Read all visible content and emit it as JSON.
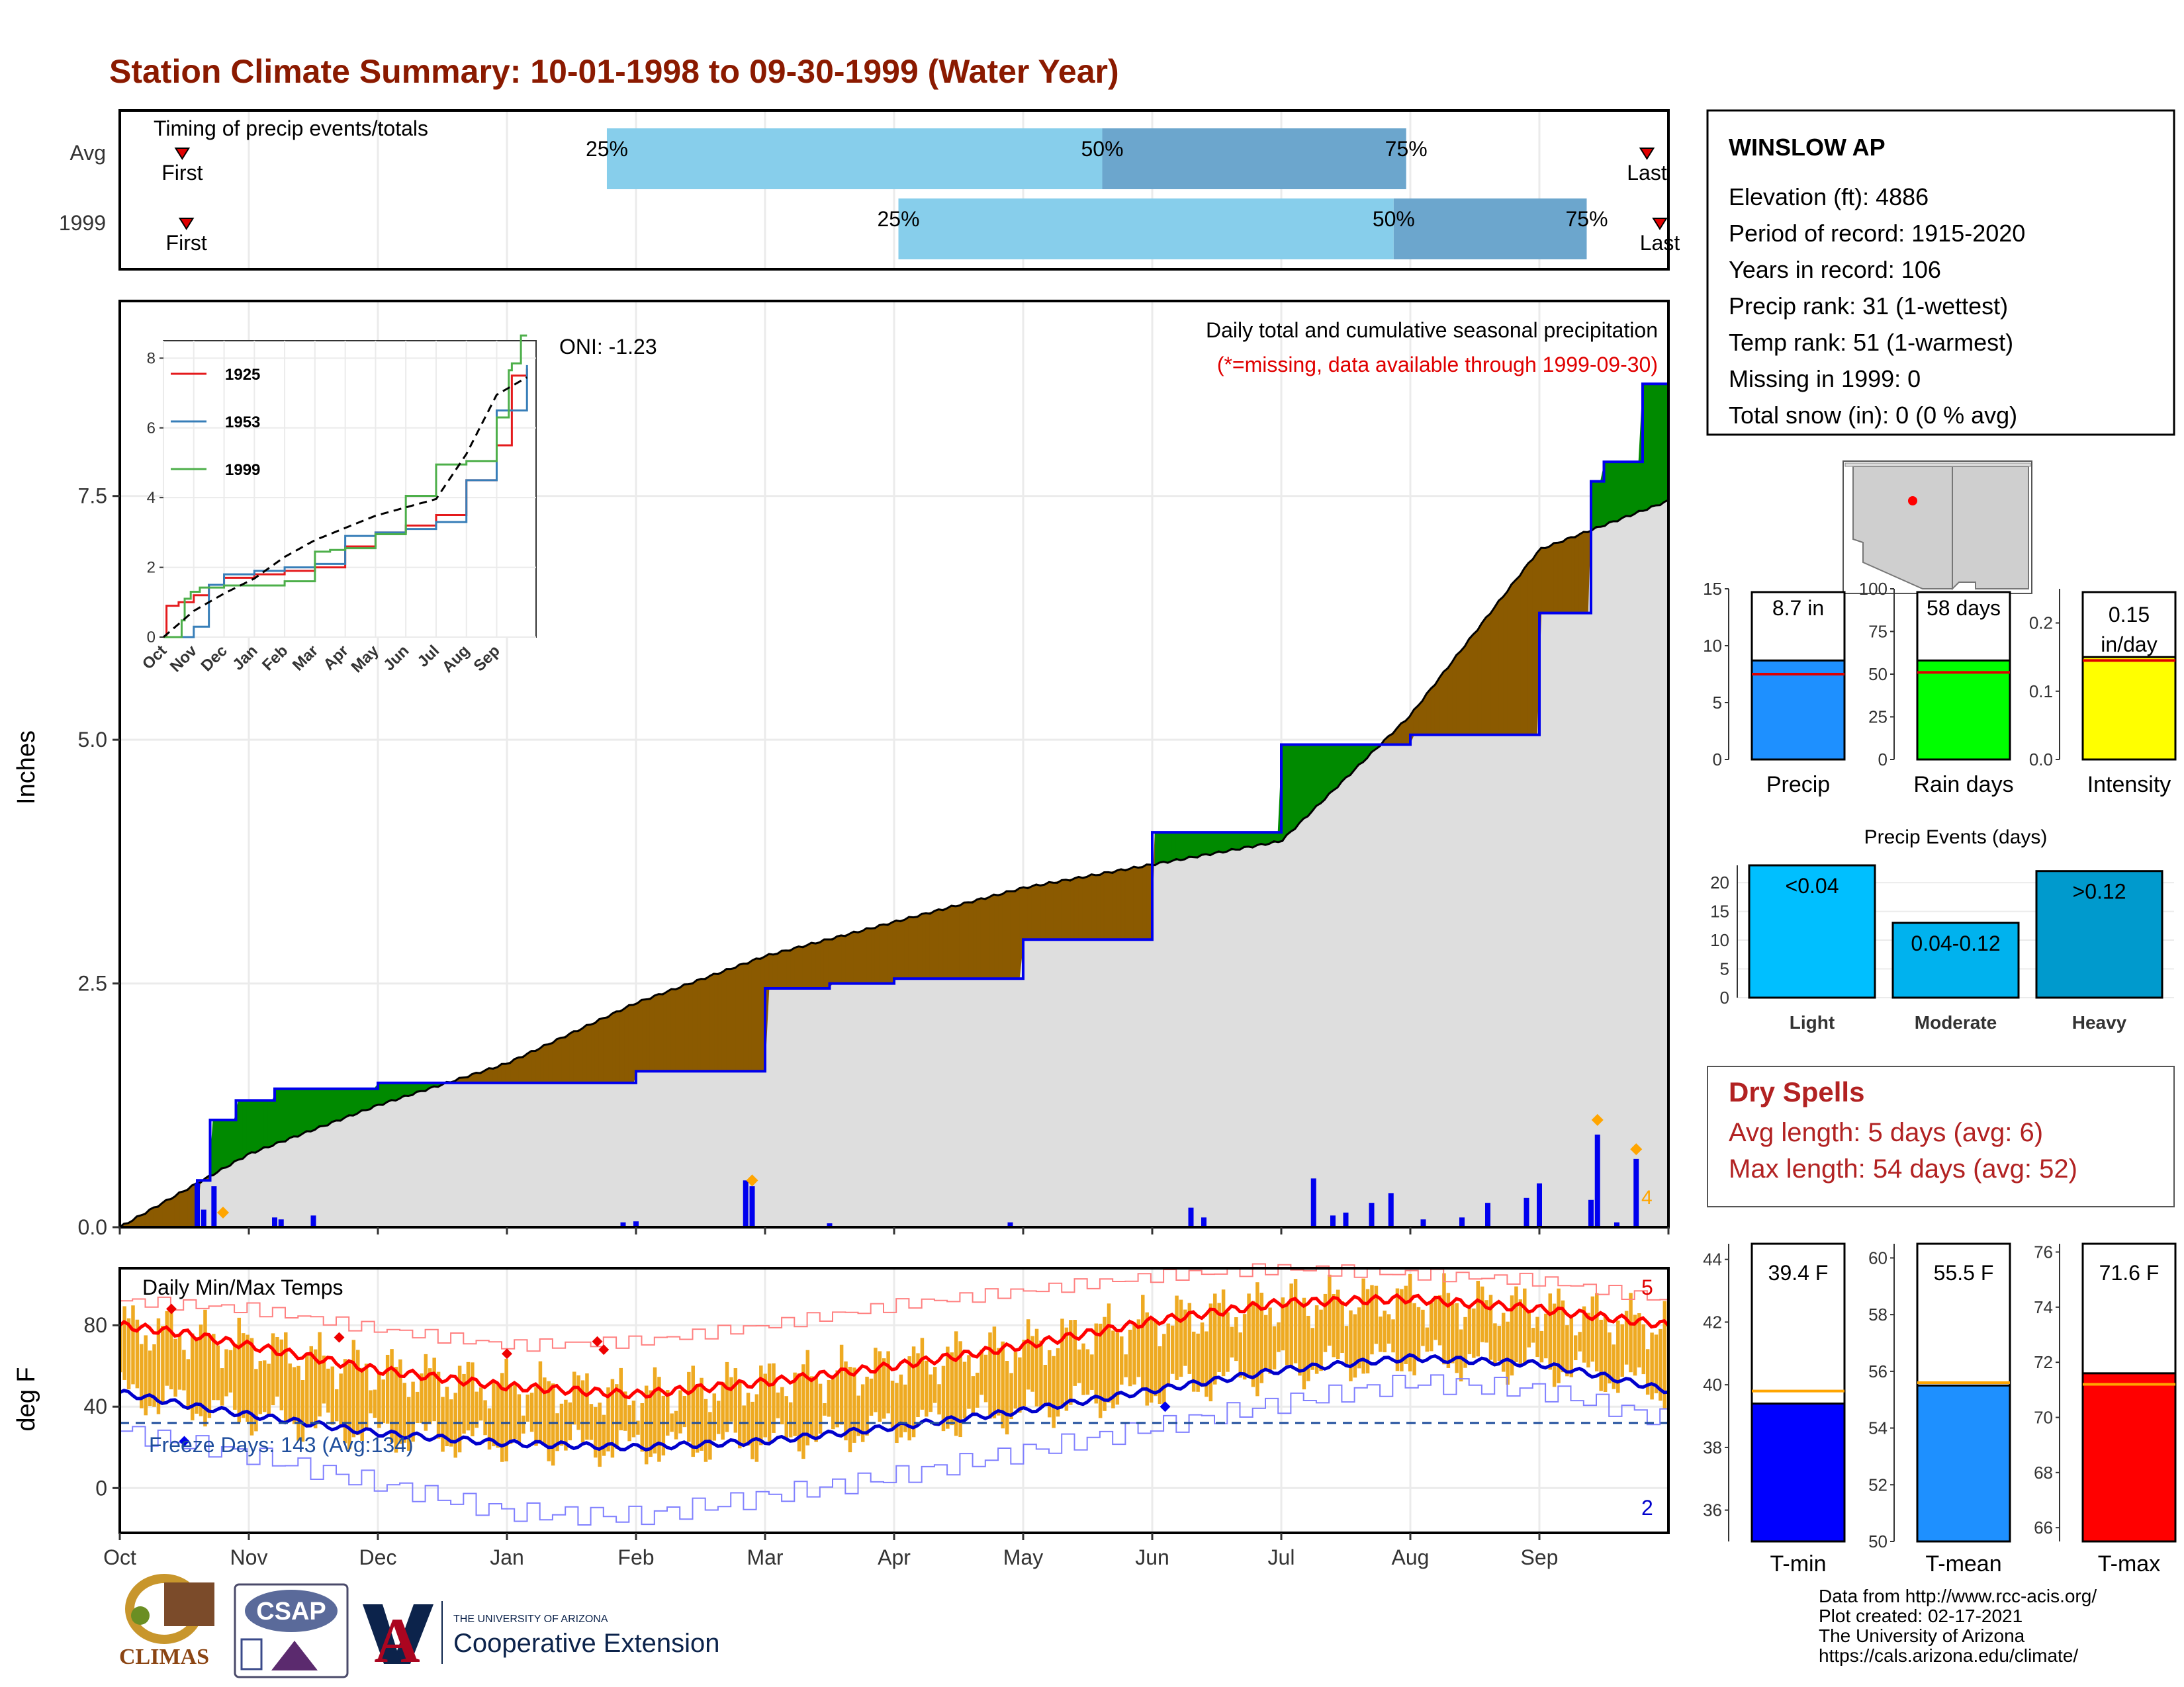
{
  "title": "Station Climate Summary: 10-01-1998 to 09-30-1999 (Water Year)",
  "timing": {
    "title": "Timing of precip events/totals",
    "rows": [
      {
        "label": "Avg",
        "first": "First",
        "last": "Last",
        "p25": "25%",
        "p50": "50%",
        "p75": "75%",
        "first_date": "1998-10-16",
        "p25_date": "1999-01-25",
        "p50_date": "1999-05-20",
        "p75_date": "1999-07-31",
        "last_date": "1999-09-26"
      },
      {
        "label": "1999",
        "first": "First",
        "last": "Last",
        "p25": "25%",
        "p50": "50%",
        "p75": "75%",
        "first_date": "1998-10-17",
        "p25_date": "1999-04-02",
        "p50_date": "1999-07-28",
        "p75_date": "1999-09-12",
        "last_date": "1999-09-29"
      }
    ]
  },
  "precip_panel": {
    "title": "Daily total and cumulative seasonal precipitation",
    "note": "(*=missing, data available through 1999-09-30)",
    "oni": "ONI: -1.23",
    "ylabel": "Inches",
    "yticks": [
      "0.0",
      "2.5",
      "5.0",
      "7.5"
    ],
    "corner_count": "4"
  },
  "inset": {
    "yticks": [
      "0",
      "2",
      "4",
      "6",
      "8"
    ],
    "xticks": [
      "Oct",
      "Nov",
      "Dec",
      "Jan",
      "Feb",
      "Mar",
      "Apr",
      "May",
      "Jun",
      "Jul",
      "Aug",
      "Sep"
    ],
    "legend": [
      "1925",
      "1953",
      "1999"
    ]
  },
  "temp_panel": {
    "title": "Daily Min/Max Temps",
    "freeze": "Freeze Days: 143 (Avg:134)",
    "ylabel": "deg F",
    "yticks": [
      "0",
      "40",
      "80"
    ],
    "count_max": "5",
    "count_min": "2"
  },
  "months": [
    "Oct",
    "Nov",
    "Dec",
    "Jan",
    "Feb",
    "Mar",
    "Apr",
    "May",
    "Jun",
    "Jul",
    "Aug",
    "Sep"
  ],
  "station": {
    "name": "WINSLOW AP",
    "lines": [
      "Elevation (ft): 4886",
      "Period of record: 1915-2020",
      "Years in record: 106",
      "Precip rank: 31 (1-wettest)",
      "Temp rank: 51 (1-warmest)",
      "Missing in 1999: 0",
      "Total snow (in): 0 (0 % avg)"
    ]
  },
  "summary_bars": [
    {
      "label": "Precip",
      "value_label": "8.7 in",
      "yticks": [
        "0",
        "5",
        "10",
        "15"
      ],
      "color": "#1e90ff"
    },
    {
      "label": "Rain days",
      "value_label": "58 days",
      "yticks": [
        "0",
        "25",
        "50",
        "75",
        "100"
      ],
      "color": "#00ff00"
    },
    {
      "label": "Intensity",
      "value_label": "0.15 in/day",
      "yticks": [
        "0.0",
        "0.1",
        "0.2"
      ],
      "color": "#ffff00"
    }
  ],
  "events": {
    "title": "Precip Events (days)",
    "yticks": [
      "0",
      "5",
      "10",
      "15",
      "20"
    ],
    "bars": [
      {
        "label": "Light",
        "range": "<0.04",
        "value": 23,
        "color": "#00bfff"
      },
      {
        "label": "Moderate",
        "range": "0.04-0.12",
        "value": 13,
        "color": "#00b2ee"
      },
      {
        "label": "Heavy",
        "range": ">0.12",
        "value": 22,
        "color": "#009acd"
      }
    ]
  },
  "dry_spells": {
    "title": "Dry Spells",
    "avg": "Avg length: 5 days (avg: 6)",
    "max": "Max length: 54 days (avg: 52)"
  },
  "temp_bars": [
    {
      "label": "T-min",
      "value_label": "39.4 F",
      "yticks": [
        "36",
        "38",
        "40",
        "42",
        "44"
      ],
      "color": "#0000ff"
    },
    {
      "label": "T-mean",
      "value_label": "55.5 F",
      "yticks": [
        "50",
        "52",
        "54",
        "56",
        "58",
        "60"
      ],
      "color": "#1e90ff"
    },
    {
      "label": "T-max",
      "value_label": "71.6 F",
      "yticks": [
        "66",
        "68",
        "70",
        "72",
        "74",
        "76"
      ],
      "color": "#ff0000"
    }
  ],
  "footer": [
    "Data from http://www.rcc-acis.org/",
    "Plot created: 02-17-2021",
    "The University of Arizona",
    "https://cals.arizona.edu/climate/"
  ],
  "logos": {
    "climas": "CLIMAS",
    "csap": "CSAP",
    "ua_small": "THE UNIVERSITY OF ARIZONA",
    "ua_big": "Cooperative Extension",
    "ua_letter": "A"
  },
  "chart_data": [
    {
      "type": "area",
      "title": "Daily total and cumulative seasonal precipitation",
      "ylabel": "Inches",
      "ylim": [
        0,
        9.5
      ],
      "x_unit": "month",
      "avg_cumulative": {
        "x": [
          0,
          1,
          2,
          3,
          4,
          5,
          6,
          7,
          8,
          9,
          10,
          11,
          12
        ],
        "y": [
          0,
          0.75,
          1.25,
          1.68,
          2.3,
          2.78,
          3.13,
          3.48,
          3.72,
          3.96,
          5.25,
          6.95,
          7.45
        ]
      },
      "series_1999_cumulative": {
        "x": [
          0,
          0.6,
          0.7,
          0.9,
          1.2,
          2.0,
          3.0,
          4.0,
          5.0,
          5.5,
          6.0,
          7.0,
          8.0,
          9.0,
          10.0,
          11.0,
          11.4,
          11.5,
          11.8,
          12.0
        ],
        "y": [
          0,
          0.48,
          1.1,
          1.3,
          1.42,
          1.48,
          1.48,
          1.6,
          2.45,
          2.5,
          2.55,
          2.95,
          4.05,
          4.95,
          5.05,
          6.3,
          7.65,
          7.85,
          8.65,
          8.65
        ]
      },
      "daily_bars": [
        [
          0.6,
          0.45
        ],
        [
          0.65,
          0.18
        ],
        [
          0.73,
          0.42
        ],
        [
          1.2,
          0.1
        ],
        [
          1.25,
          0.08
        ],
        [
          1.5,
          0.12
        ],
        [
          3.9,
          0.05
        ],
        [
          4.0,
          0.06
        ],
        [
          4.85,
          0.48
        ],
        [
          4.9,
          0.42
        ],
        [
          5.5,
          0.04
        ],
        [
          6.9,
          0.05
        ],
        [
          8.3,
          0.2
        ],
        [
          8.4,
          0.1
        ],
        [
          9.25,
          0.5
        ],
        [
          9.4,
          0.12
        ],
        [
          9.5,
          0.15
        ],
        [
          9.7,
          0.25
        ],
        [
          9.85,
          0.35
        ],
        [
          10.1,
          0.08
        ],
        [
          10.4,
          0.1
        ],
        [
          10.6,
          0.25
        ],
        [
          10.9,
          0.3
        ],
        [
          11.0,
          0.45
        ],
        [
          11.4,
          0.28
        ],
        [
          11.45,
          0.95
        ],
        [
          11.6,
          0.05
        ],
        [
          11.75,
          0.7
        ]
      ],
      "markers": [
        [
          0.8,
          0.15
        ],
        [
          4.9,
          0.48
        ],
        [
          11.45,
          1.1
        ],
        [
          11.75,
          0.8
        ]
      ]
    },
    {
      "type": "line",
      "title": "inset cumulative precipitation",
      "ylim": [
        0,
        8.5
      ],
      "categories": [
        "Oct",
        "Nov",
        "Dec",
        "Jan",
        "Feb",
        "Mar",
        "Apr",
        "May",
        "Jun",
        "Jul",
        "Aug",
        "Sep"
      ],
      "series": [
        {
          "name": "1925",
          "x": [
            0,
            0.1,
            0.5,
            1.0,
            1.5,
            2.0,
            3.0,
            4.0,
            5.0,
            6.0,
            7.0,
            8.0,
            9.0,
            10.0,
            11.0,
            11.5,
            12.0
          ],
          "y": [
            0,
            0.9,
            1.0,
            1.2,
            1.5,
            1.7,
            1.8,
            1.9,
            2.0,
            2.6,
            3.0,
            3.2,
            3.5,
            4.5,
            5.5,
            7.5,
            7.7
          ]
        },
        {
          "name": "1953",
          "x": [
            0,
            1.0,
            1.5,
            2.0,
            3.0,
            4.0,
            5.0,
            6.0,
            7.0,
            8.0,
            9.0,
            10.0,
            11.0,
            12.0
          ],
          "y": [
            0,
            0.3,
            1.5,
            1.8,
            1.9,
            2.0,
            2.1,
            2.9,
            3.0,
            3.1,
            3.3,
            4.5,
            6.5,
            7.8
          ]
        },
        {
          "name": "1999",
          "x": [
            0,
            0.6,
            0.7,
            0.9,
            1.2,
            2.0,
            3.0,
            4.0,
            5.0,
            5.5,
            6.0,
            7.0,
            8.0,
            9.0,
            10.0,
            11.0,
            11.4,
            11.5,
            11.8,
            12.0
          ],
          "y": [
            0,
            0.48,
            1.1,
            1.3,
            1.42,
            1.48,
            1.48,
            1.6,
            2.45,
            2.5,
            2.55,
            2.95,
            4.05,
            4.95,
            5.05,
            6.3,
            7.65,
            7.85,
            8.65,
            8.65
          ]
        },
        {
          "name": "avg",
          "x": [
            0,
            1,
            2,
            3,
            4,
            5,
            6,
            7,
            8,
            9,
            10,
            11,
            12
          ],
          "y": [
            0,
            0.75,
            1.25,
            1.68,
            2.3,
            2.78,
            3.13,
            3.48,
            3.72,
            3.96,
            5.25,
            6.95,
            7.45
          ]
        }
      ]
    },
    {
      "type": "line",
      "title": "Daily Min/Max Temps",
      "ylabel": "deg F",
      "ylim": [
        -22,
        108
      ],
      "freeze_line": 32,
      "avg_max": {
        "x": [
          0,
          0.5,
          1,
          2,
          3,
          4,
          5,
          6,
          7,
          8,
          9,
          10,
          11,
          11.5,
          12
        ],
        "y": [
          80,
          76,
          70,
          58,
          50,
          46,
          52,
          60,
          70,
          82,
          91,
          93,
          88,
          84,
          80
        ]
      },
      "avg_min": {
        "x": [
          0,
          0.5,
          1,
          2,
          3,
          4,
          5,
          6,
          7,
          8,
          9,
          10,
          11,
          11.5,
          12
        ],
        "y": [
          47,
          41,
          36,
          27,
          22,
          20,
          23,
          30,
          38,
          48,
          58,
          64,
          61,
          55,
          48
        ]
      },
      "record_max": {
        "x": [
          0,
          1,
          2,
          3,
          4,
          5,
          6,
          7,
          8,
          9,
          10,
          11,
          12
        ],
        "y": [
          92,
          88,
          78,
          70,
          72,
          80,
          90,
          97,
          104,
          108,
          105,
          102,
          92
        ]
      },
      "record_min": {
        "x": [
          0,
          1,
          2,
          3,
          4,
          5,
          6,
          7,
          8,
          9,
          10,
          11,
          12
        ],
        "y": [
          28,
          16,
          2,
          -12,
          -14,
          -4,
          6,
          18,
          30,
          42,
          52,
          48,
          33
        ]
      },
      "record_highs": [
        [
          0.4,
          88
        ],
        [
          1.7,
          74
        ],
        [
          3.0,
          66
        ],
        [
          3.7,
          72
        ],
        [
          3.75,
          68
        ]
      ],
      "record_lows": [
        [
          0.5,
          23
        ],
        [
          8.1,
          40
        ]
      ]
    },
    {
      "type": "bar",
      "title": "Precip Events (days)",
      "categories": [
        "Light",
        "Moderate",
        "Heavy"
      ],
      "values": [
        23,
        13,
        22
      ],
      "ylim": [
        0,
        23
      ]
    },
    {
      "type": "bar",
      "categories": [
        "Precip",
        "Rain days",
        "Intensity"
      ],
      "values": [
        8.7,
        58,
        0.15
      ],
      "averages": [
        7.5,
        51,
        0.145
      ],
      "ylims": [
        [
          0,
          15
        ],
        [
          0,
          100
        ],
        [
          0,
          0.25
        ]
      ]
    },
    {
      "type": "bar",
      "categories": [
        "T-min",
        "T-mean",
        "T-max"
      ],
      "values": [
        39.4,
        55.5,
        71.6
      ],
      "averages": [
        39.8,
        55.6,
        71.2
      ],
      "ylims": [
        [
          35,
          44.5
        ],
        [
          50,
          60.5
        ],
        [
          65.5,
          76.3
        ]
      ]
    }
  ]
}
